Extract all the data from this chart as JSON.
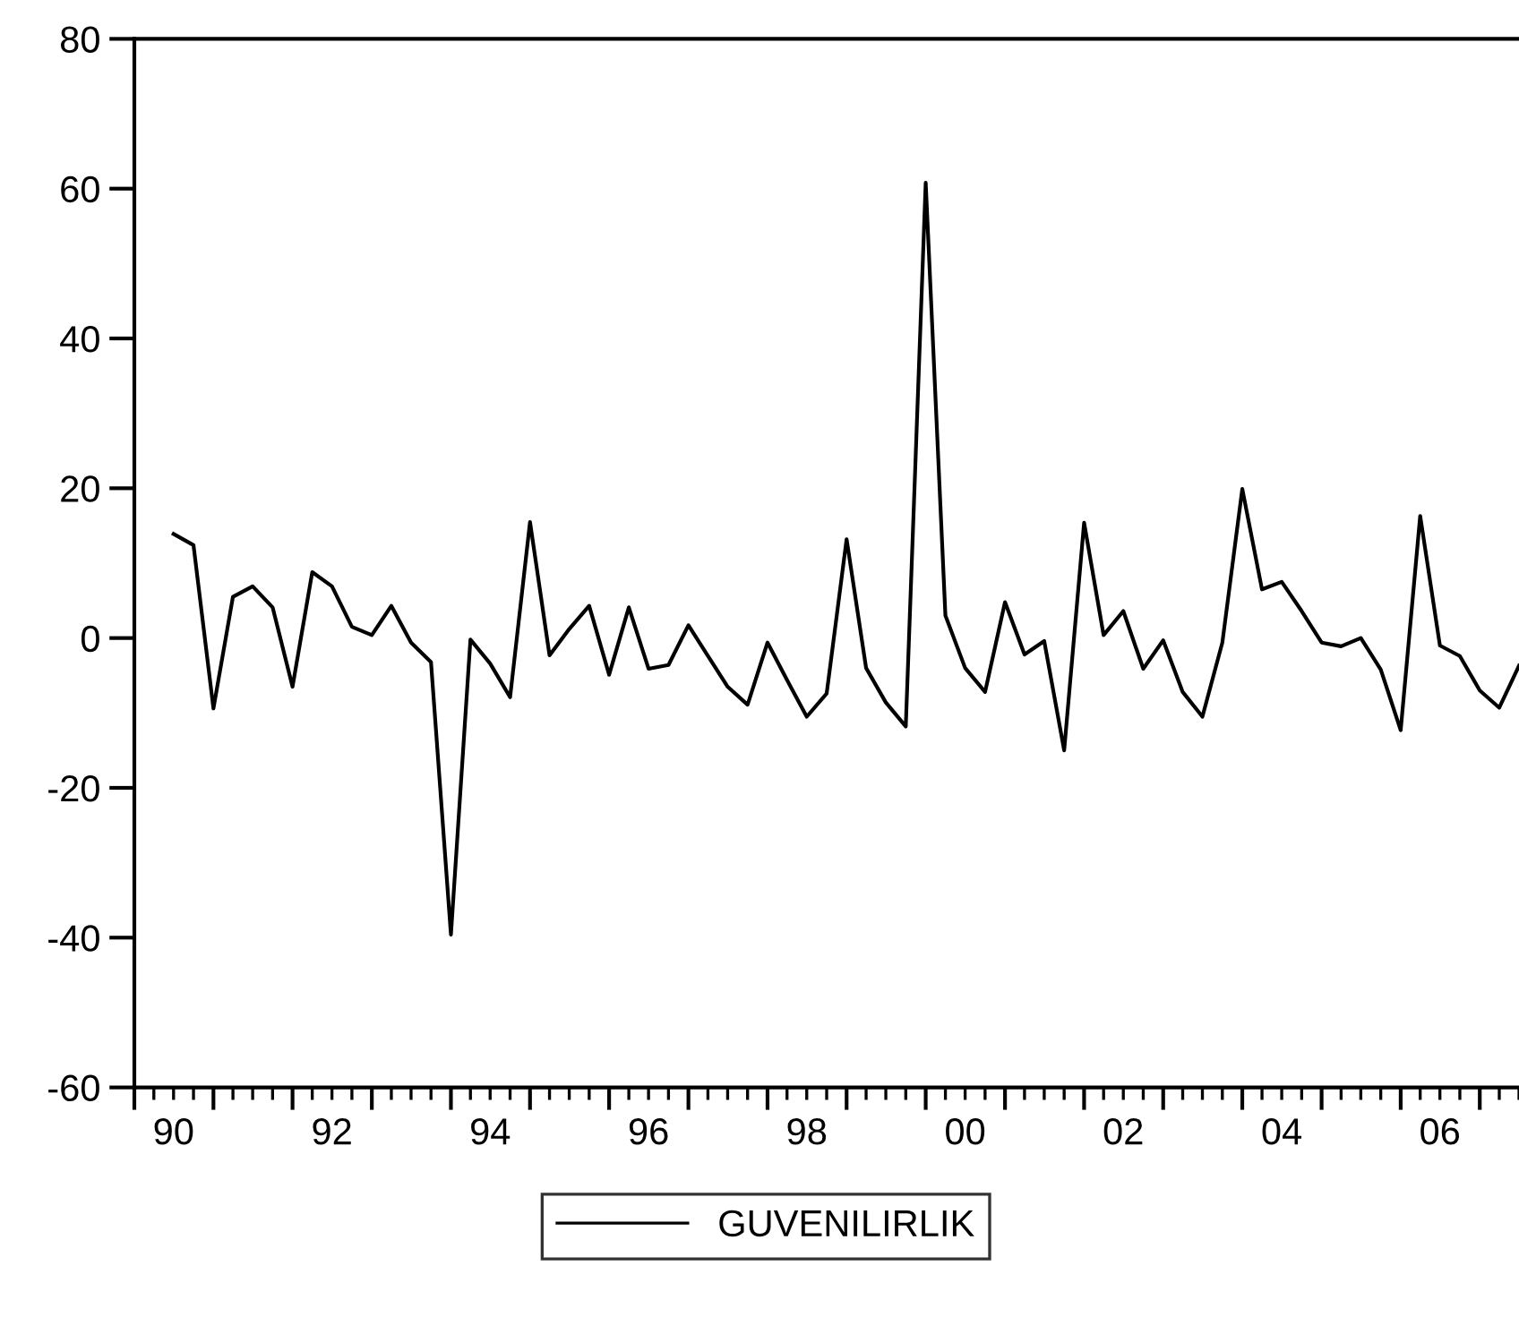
{
  "chart_data": {
    "type": "line",
    "x": [
      "1990-07",
      "1990-10",
      "1991-01",
      "1991-04",
      "1991-07",
      "1991-10",
      "1992-01",
      "1992-04",
      "1992-07",
      "1992-10",
      "1993-01",
      "1993-04",
      "1993-07",
      "1993-10",
      "1994-01",
      "1994-04",
      "1994-07",
      "1994-10",
      "1995-01",
      "1995-04",
      "1995-07",
      "1995-10",
      "1996-01",
      "1996-04",
      "1996-07",
      "1996-10",
      "1997-01",
      "1997-04",
      "1997-07",
      "1997-10",
      "1998-01",
      "1998-04",
      "1998-07",
      "1998-10",
      "1999-01",
      "1999-04",
      "1999-07",
      "1999-10",
      "2000-01",
      "2000-04",
      "2000-07",
      "2000-10",
      "2001-01",
      "2001-04",
      "2001-07",
      "2001-10",
      "2002-01",
      "2002-04",
      "2002-07",
      "2002-10",
      "2003-01",
      "2003-04",
      "2003-07",
      "2003-10",
      "2004-01",
      "2004-04",
      "2004-07",
      "2004-10",
      "2005-01",
      "2005-04",
      "2005-07",
      "2005-10",
      "2006-01",
      "2006-04",
      "2006-07",
      "2006-10",
      "2007-01",
      "2007-04",
      "2007-07"
    ],
    "series": [
      {
        "name": "GUVENILIRLIK",
        "color": "#000000",
        "values": [
          13.9,
          12.4,
          -9.4,
          5.5,
          6.9,
          4.1,
          -6.5,
          8.8,
          6.9,
          1.5,
          0.4,
          4.3,
          -0.6,
          -3.2,
          -39.6,
          -0.2,
          -3.4,
          -7.9,
          15.5,
          -2.3,
          1.2,
          4.3,
          -4.9,
          4.1,
          -4.1,
          -3.6,
          1.7,
          -2.4,
          -6.5,
          -8.9,
          -0.6,
          -5.6,
          -10.5,
          -7.4,
          13.2,
          -4.0,
          -8.6,
          -11.8,
          60.8,
          3.0,
          -4.0,
          -7.2,
          4.8,
          -2.2,
          -0.4,
          -15.0,
          15.4,
          0.4,
          3.6,
          -4.1,
          -0.3,
          -7.2,
          -10.5,
          -0.6,
          19.9,
          6.5,
          7.5,
          3.6,
          -0.6,
          -1.1,
          0.0,
          -4.2,
          -12.3,
          16.3,
          -1.0,
          -2.4,
          -7.0,
          -9.3,
          -3.7
        ]
      }
    ],
    "xlim": [
      "1990-01",
      "2007-07"
    ],
    "xticks": [
      {
        "value": "1990",
        "label": null
      },
      {
        "value": "1991",
        "label": null
      },
      {
        "value": "1992",
        "label": null
      },
      {
        "value": "1993",
        "label": null
      },
      {
        "value": "1994",
        "label": null
      },
      {
        "value": "1995",
        "label": null
      },
      {
        "value": "1996",
        "label": null
      },
      {
        "value": "1997",
        "label": null
      },
      {
        "value": "1998",
        "label": null
      },
      {
        "value": "1999",
        "label": null
      },
      {
        "value": "2000",
        "label": null
      },
      {
        "value": "2001",
        "label": null
      },
      {
        "value": "2002",
        "label": null
      },
      {
        "value": "2003",
        "label": null
      },
      {
        "value": "2004",
        "label": null
      },
      {
        "value": "2005",
        "label": null
      },
      {
        "value": "2006",
        "label": null
      },
      {
        "value": "2007",
        "label": null
      },
      {
        "value": "1990-07",
        "label": "90"
      },
      {
        "value": "1992-07",
        "label": "92"
      },
      {
        "value": "1994-07",
        "label": "94"
      },
      {
        "value": "1996-07",
        "label": "96"
      },
      {
        "value": "1998-07",
        "label": "98"
      },
      {
        "value": "2000-07",
        "label": "00"
      },
      {
        "value": "2002-07",
        "label": "02"
      },
      {
        "value": "2004-07",
        "label": "04"
      },
      {
        "value": "2006-07",
        "label": "06"
      }
    ],
    "ylim": [
      -60,
      80
    ],
    "yticks": [
      -60,
      -40,
      -20,
      0,
      20,
      40,
      60,
      80
    ],
    "grid": false,
    "legend": "bottom",
    "marker": "none",
    "line_style": "solid"
  }
}
